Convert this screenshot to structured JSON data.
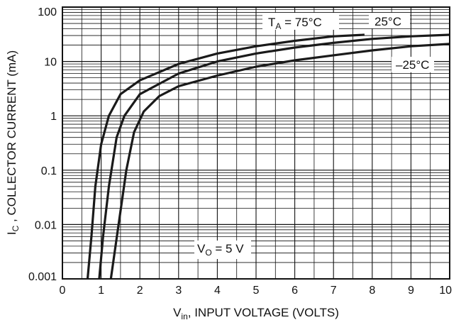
{
  "chart_data": {
    "type": "line",
    "title": "",
    "xlabel": {
      "main": "V",
      "sub": "in",
      "rest": ", INPUT VOLTAGE (VOLTS)"
    },
    "ylabel": {
      "main": "I",
      "sub": "C",
      "rest": " , COLLECTOR CURRENT (mA)"
    },
    "x_axis": {
      "min": 0,
      "max": 10,
      "scale": "linear",
      "ticks": [
        "0",
        "1",
        "2",
        "3",
        "4",
        "5",
        "6",
        "7",
        "8",
        "9",
        "10"
      ]
    },
    "y_axis": {
      "min": 0.001,
      "max": 100,
      "scale": "log",
      "ticks": [
        "0.001",
        "0.01",
        "0.1",
        "1",
        "10",
        "100"
      ]
    },
    "grid": true,
    "series": [
      {
        "name": "75°C",
        "points": [
          [
            0.65,
            0.001
          ],
          [
            0.75,
            0.006
          ],
          [
            0.85,
            0.05
          ],
          [
            1.0,
            0.3
          ],
          [
            1.2,
            1
          ],
          [
            1.5,
            2.5
          ],
          [
            2,
            4.5
          ],
          [
            3,
            9
          ],
          [
            4,
            14
          ],
          [
            5,
            19
          ],
          [
            6,
            24
          ],
          [
            7,
            29
          ],
          [
            7.8,
            31
          ]
        ]
      },
      {
        "name": "25°C",
        "points": [
          [
            0.95,
            0.001
          ],
          [
            1.05,
            0.006
          ],
          [
            1.2,
            0.05
          ],
          [
            1.4,
            0.4
          ],
          [
            1.6,
            1
          ],
          [
            2,
            2.5
          ],
          [
            3,
            6
          ],
          [
            4,
            10
          ],
          [
            5,
            14
          ],
          [
            6,
            18
          ],
          [
            7,
            22
          ],
          [
            8,
            26
          ],
          [
            9,
            29
          ],
          [
            10,
            31
          ]
        ]
      },
      {
        "name": "-25°C",
        "points": [
          [
            1.25,
            0.001
          ],
          [
            1.45,
            0.01
          ],
          [
            1.65,
            0.1
          ],
          [
            1.85,
            0.5
          ],
          [
            2.1,
            1.2
          ],
          [
            2.5,
            2.3
          ],
          [
            3,
            3.5
          ],
          [
            4,
            5.5
          ],
          [
            5,
            8
          ],
          [
            6,
            10.5
          ],
          [
            7,
            13
          ],
          [
            8,
            16
          ],
          [
            9,
            19
          ],
          [
            10,
            21
          ]
        ]
      }
    ],
    "annotations": [
      {
        "id": "ta",
        "main": "T",
        "sub": "A",
        "rest": " = 75°C",
        "near": "top-center"
      },
      {
        "id": "t25",
        "text": "25°C",
        "near": "top-right"
      },
      {
        "id": "tm25",
        "text": "–25°C",
        "near": "right"
      },
      {
        "id": "vo",
        "main": "V",
        "sub": "O",
        "rest": " = 5 V",
        "near": "bottom-center"
      }
    ]
  }
}
